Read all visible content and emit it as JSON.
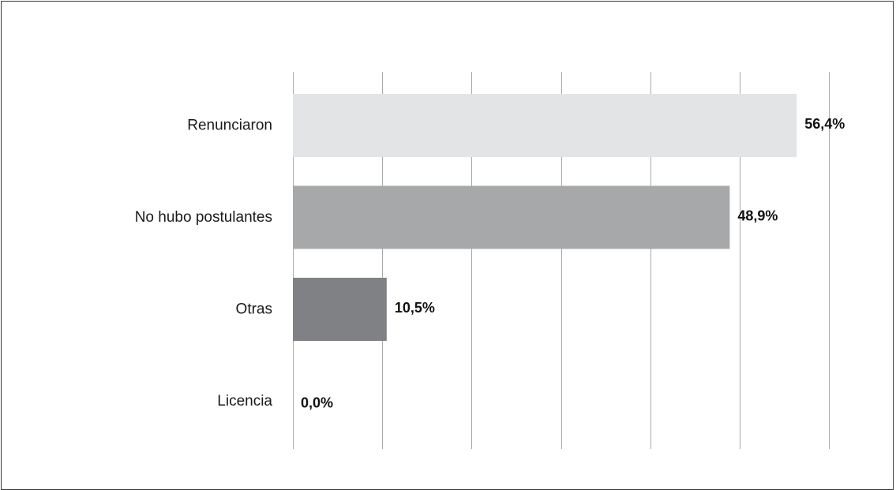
{
  "chart_data": {
    "type": "bar",
    "orientation": "horizontal",
    "categories": [
      "Renunciaron",
      "No hubo postulantes",
      "Otras",
      "Licencia"
    ],
    "values": [
      56.4,
      48.9,
      10.5,
      0.0
    ],
    "value_labels": [
      "56,4%",
      "48,9%",
      "10,5%",
      "0,0%"
    ],
    "bar_colors": [
      "#e3e4e5",
      "#a7a8aa",
      "#808184",
      "#6d6e71"
    ],
    "gridline_color": "#a9a9a9",
    "xlim": [
      0,
      60
    ],
    "grid": true,
    "legend": false,
    "title": "",
    "xlabel": "",
    "ylabel": ""
  }
}
